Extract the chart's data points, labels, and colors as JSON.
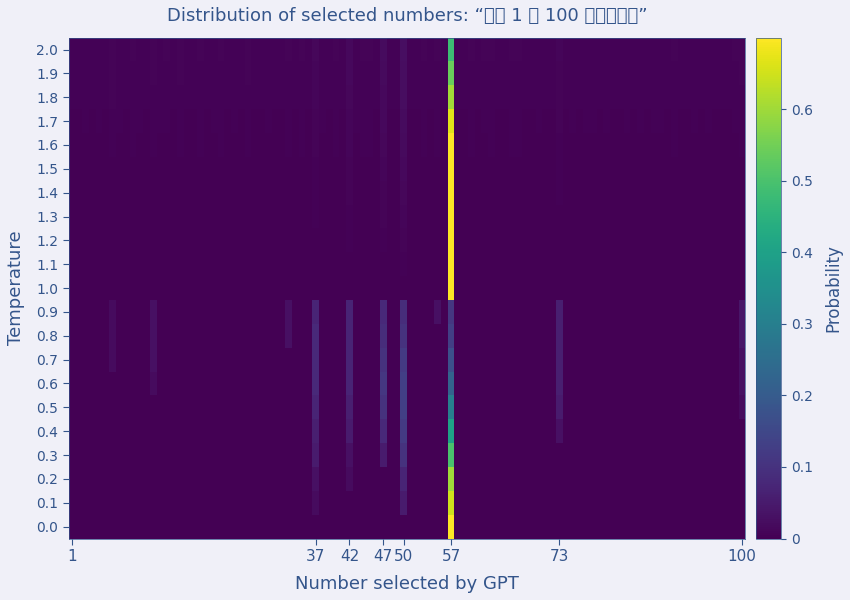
{
  "title": "Distribution of selected numbers: “选择 1 到 100 之间的整数”",
  "xlabel": "Number selected by GPT",
  "ylabel": "Temperature",
  "xticks": [
    1,
    37,
    42,
    47,
    50,
    57,
    73,
    100
  ],
  "yticks": [
    0.0,
    0.1,
    0.2,
    0.3,
    0.4,
    0.5,
    0.6,
    0.7,
    0.8,
    0.9,
    1.0,
    1.1,
    1.2,
    1.3,
    1.4,
    1.5,
    1.6,
    1.7,
    1.8,
    1.9,
    2.0
  ],
  "colormap": "viridis",
  "vmax": 0.7,
  "colorbar_label": "Probability",
  "colorbar_ticks": [
    0,
    0.1,
    0.2,
    0.3,
    0.4,
    0.5,
    0.6
  ],
  "temperatures": [
    0.0,
    0.1,
    0.2,
    0.3,
    0.4,
    0.5,
    0.6,
    0.7,
    0.8,
    0.9,
    1.0,
    1.1,
    1.2,
    1.3,
    1.4,
    1.5,
    1.6,
    1.7,
    1.8,
    1.9,
    2.0
  ],
  "n_numbers": 100,
  "title_color": "#34558b",
  "label_color": "#34558b",
  "tick_color": "#34558b",
  "figsize": [
    8.5,
    6.0
  ],
  "dpi": 100
}
